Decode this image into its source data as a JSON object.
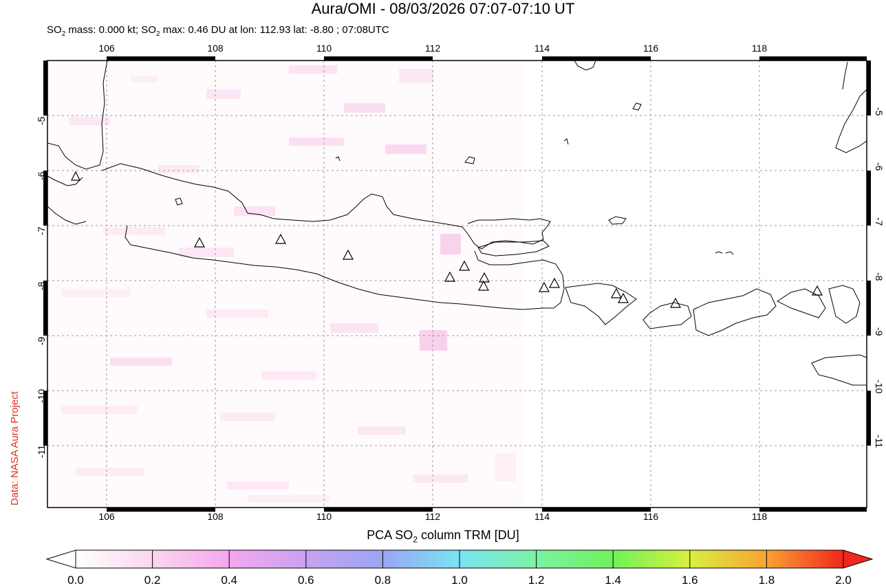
{
  "title": "Aura/OMI - 08/03/2026 07:07-07:10 UT",
  "subtitle": {
    "prefix": "SO",
    "sub1": "2",
    "mid1": " mass: 0.000 kt; SO",
    "sub2": "2",
    "rest": " max: 0.46 DU at lon: 112.93 lat: -8.80 ; 07:08UTC"
  },
  "credit": "Data: NASA Aura Project",
  "map": {
    "lon_ticks": [
      "106",
      "108",
      "110",
      "112",
      "114",
      "116",
      "118"
    ],
    "lat_ticks": [
      "-5",
      "-6",
      "-7",
      "-8",
      "-9",
      "-10",
      "-11"
    ],
    "lon_range": [
      104.9,
      120.1
    ],
    "lat_range": [
      -12.1,
      -3.8
    ],
    "grid": "dashed",
    "volcano_marker": "triangle-icon"
  },
  "colorbar": {
    "title_prefix": "PCA SO",
    "title_sub": "2",
    "title_rest": " column TRM [DU]",
    "labels": [
      "0.0",
      "0.2",
      "0.4",
      "0.6",
      "0.8",
      "1.0",
      "1.2",
      "1.4",
      "1.6",
      "1.8",
      "2.0"
    ],
    "range": [
      0.0,
      2.0
    ],
    "colors": [
      "#ffffff",
      "#fbd6ec",
      "#f4a7ee",
      "#c9a2f0",
      "#9aa6f4",
      "#79e4f2",
      "#7af3a4",
      "#6ef25a",
      "#d8f03e",
      "#f9a233",
      "#f1261d"
    ]
  }
}
